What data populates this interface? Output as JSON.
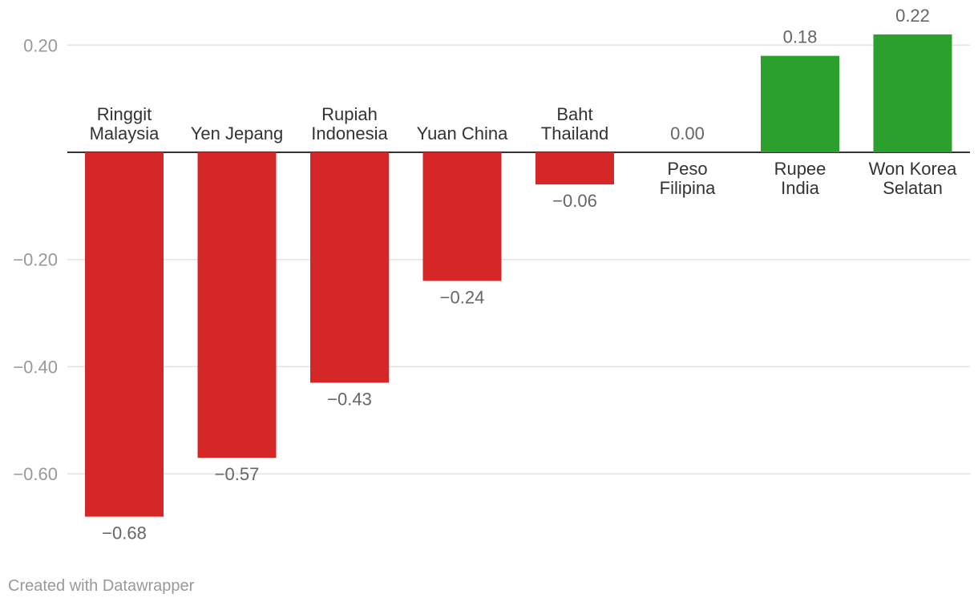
{
  "chart_data": {
    "type": "bar",
    "categories": [
      [
        "Ringgit",
        "Malaysia"
      ],
      [
        "Yen Jepang"
      ],
      [
        "Rupiah",
        "Indonesia"
      ],
      [
        "Yuan China"
      ],
      [
        "Baht",
        "Thailand"
      ],
      [
        "Peso",
        "Filipina"
      ],
      [
        "Rupee",
        "India"
      ],
      [
        "Won Korea",
        "Selatan"
      ]
    ],
    "values": [
      -0.68,
      -0.57,
      -0.43,
      -0.24,
      -0.06,
      0.0,
      0.18,
      0.22
    ],
    "value_labels": [
      "−0.68",
      "−0.57",
      "−0.43",
      "−0.24",
      "−0.06",
      "0.00",
      "0.18",
      "0.22"
    ],
    "yticks": [
      0.2,
      -0.2,
      -0.4,
      -0.6
    ],
    "ytick_labels": [
      "0.20",
      "−0.20",
      "−0.40",
      "−0.60"
    ],
    "ylim": [
      -0.7,
      0.2
    ],
    "grid": true,
    "colors": {
      "negative": "#d62728",
      "positive": "#2ca02c",
      "grid": "#e3e3e3",
      "baseline": "#333333"
    }
  },
  "footer": {
    "credit": "Created with Datawrapper"
  }
}
